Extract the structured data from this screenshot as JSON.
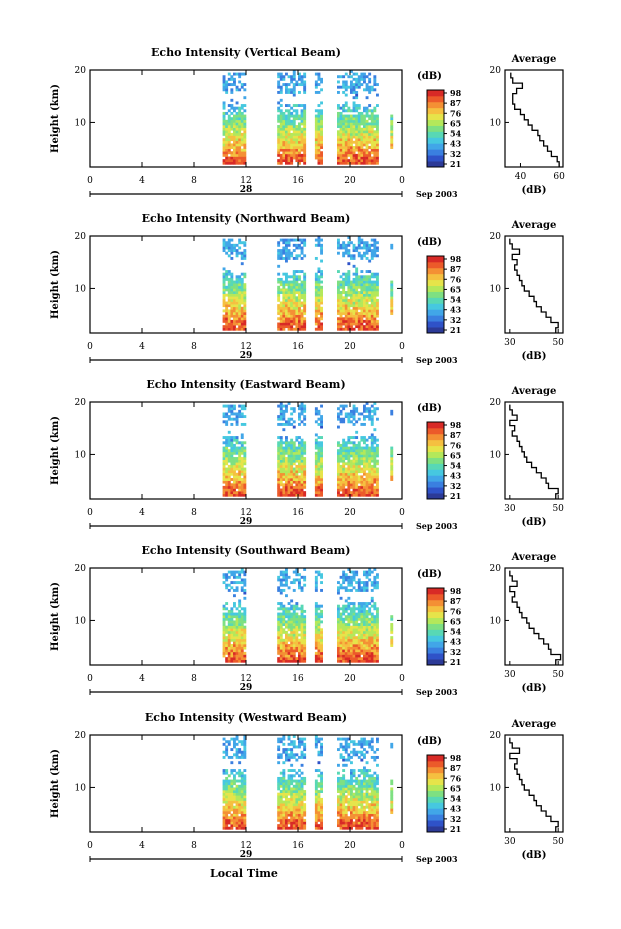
{
  "colors": {
    "scale": [
      "#2c3a97",
      "#2f52c8",
      "#3a7fe0",
      "#41a6e8",
      "#46c8e0",
      "#58d8b5",
      "#7ee082",
      "#b4e85a",
      "#e6e44a",
      "#f5c040",
      "#f49034",
      "#ec5a2a",
      "#d82a26"
    ]
  },
  "colorbar": {
    "unit": "(dB)",
    "labels": [
      "98",
      "87",
      "76",
      "65",
      "54",
      "43",
      "32",
      "21"
    ]
  },
  "footer": {
    "xlabel": "Local Time"
  },
  "chart_data": [
    {
      "type": "heatmap",
      "title": "Echo Intensity (Vertical Beam)",
      "ylabel": "Height (km)",
      "y_ticks": [
        "20",
        "10"
      ],
      "x_ticks": [
        "0",
        "4",
        "8",
        "12",
        "16",
        "20",
        "0"
      ],
      "date_label": "28",
      "date_tail": "Sep 2003",
      "xlim": [
        0,
        24
      ],
      "ylim": [
        1.5,
        20
      ],
      "data_windows": [
        [
          10.2,
          12.0
        ],
        [
          14.4,
          16.6
        ],
        [
          17.3,
          17.9
        ],
        [
          19.0,
          22.2
        ],
        [
          23.1,
          23.3
        ]
      ],
      "profile": {
        "title": "Average",
        "xlabel": "(dB)",
        "x_ticks": [
          "40",
          "60"
        ],
        "y_ticks": [
          "20",
          "10"
        ],
        "xlim": [
          32,
          62
        ],
        "heights": [
          2,
          3,
          4,
          5,
          6,
          7,
          8,
          9,
          10,
          11,
          12,
          13,
          14,
          15,
          16,
          17,
          18,
          19
        ],
        "values": [
          60,
          59,
          56,
          54,
          52,
          50,
          49,
          46,
          44,
          42,
          40,
          37,
          36,
          36,
          38,
          41,
          36,
          35
        ]
      }
    },
    {
      "type": "heatmap",
      "title": "Echo Intensity (Northward Beam)",
      "ylabel": "Height (km)",
      "y_ticks": [
        "20",
        "10"
      ],
      "x_ticks": [
        "0",
        "4",
        "8",
        "12",
        "16",
        "20",
        "0"
      ],
      "date_label": "29",
      "date_tail": "Sep 2003",
      "xlim": [
        0,
        24
      ],
      "ylim": [
        1.5,
        20
      ],
      "data_windows": [
        [
          10.2,
          12.0
        ],
        [
          14.4,
          16.6
        ],
        [
          17.3,
          17.9
        ],
        [
          19.0,
          22.2
        ],
        [
          23.1,
          23.3
        ]
      ],
      "profile": {
        "title": "Average",
        "xlabel": "(dB)",
        "x_ticks": [
          "30",
          "50"
        ],
        "y_ticks": [
          "20",
          "10"
        ],
        "xlim": [
          28,
          52
        ],
        "heights": [
          2,
          3,
          4,
          5,
          6,
          7,
          8,
          9,
          10,
          11,
          12,
          13,
          14,
          15,
          16,
          17,
          18,
          19
        ],
        "values": [
          49,
          50,
          47,
          45,
          43,
          41,
          40,
          38,
          36,
          35,
          34,
          33,
          32,
          33,
          31,
          34,
          31,
          30
        ]
      }
    },
    {
      "type": "heatmap",
      "title": "Echo Intensity (Eastward Beam)",
      "ylabel": "Height (km)",
      "y_ticks": [
        "20",
        "10"
      ],
      "x_ticks": [
        "0",
        "4",
        "8",
        "12",
        "16",
        "20",
        "0"
      ],
      "date_label": "29",
      "date_tail": "Sep 2003",
      "xlim": [
        0,
        24
      ],
      "ylim": [
        1.5,
        20
      ],
      "data_windows": [
        [
          10.2,
          12.0
        ],
        [
          14.4,
          16.6
        ],
        [
          17.3,
          17.9
        ],
        [
          19.0,
          22.2
        ],
        [
          23.1,
          23.3
        ]
      ],
      "profile": {
        "title": "Average",
        "xlabel": "(dB)",
        "x_ticks": [
          "30",
          "50"
        ],
        "y_ticks": [
          "20",
          "10"
        ],
        "xlim": [
          28,
          52
        ],
        "heights": [
          2,
          3,
          4,
          5,
          6,
          7,
          8,
          9,
          10,
          11,
          12,
          13,
          14,
          15,
          16,
          17,
          18,
          19
        ],
        "values": [
          49,
          50,
          46,
          45,
          43,
          41,
          39,
          37,
          36,
          35,
          34,
          33,
          31,
          32,
          30,
          33,
          31,
          30
        ]
      }
    },
    {
      "type": "heatmap",
      "title": "Echo Intensity (Southward Beam)",
      "ylabel": "Height (km)",
      "y_ticks": [
        "20",
        "10"
      ],
      "x_ticks": [
        "0",
        "4",
        "8",
        "12",
        "16",
        "20",
        "0"
      ],
      "date_label": "29",
      "date_tail": "Sep 2003",
      "xlim": [
        0,
        24
      ],
      "ylim": [
        1.5,
        20
      ],
      "data_windows": [
        [
          10.2,
          12.0
        ],
        [
          14.4,
          16.6
        ],
        [
          17.3,
          17.9
        ],
        [
          19.0,
          22.2
        ],
        [
          23.1,
          23.3
        ]
      ],
      "profile": {
        "title": "Average",
        "xlabel": "(dB)",
        "x_ticks": [
          "30",
          "50"
        ],
        "y_ticks": [
          "20",
          "10"
        ],
        "xlim": [
          28,
          52
        ],
        "heights": [
          2,
          3,
          4,
          5,
          6,
          7,
          8,
          9,
          10,
          11,
          12,
          13,
          14,
          15,
          16,
          17,
          18,
          19
        ],
        "values": [
          49,
          51,
          47,
          46,
          44,
          42,
          40,
          38,
          37,
          35,
          34,
          33,
          31,
          32,
          30,
          33,
          31,
          30
        ]
      }
    },
    {
      "type": "heatmap",
      "title": "Echo Intensity (Westward Beam)",
      "ylabel": "Height (km)",
      "y_ticks": [
        "20",
        "10"
      ],
      "x_ticks": [
        "0",
        "4",
        "8",
        "12",
        "16",
        "20",
        "0"
      ],
      "date_label": "29",
      "date_tail": "Sep 2003",
      "xlim": [
        0,
        24
      ],
      "ylim": [
        1.5,
        20
      ],
      "data_windows": [
        [
          10.2,
          12.0
        ],
        [
          14.4,
          16.6
        ],
        [
          17.3,
          17.9
        ],
        [
          19.0,
          22.2
        ],
        [
          23.1,
          23.3
        ]
      ],
      "profile": {
        "title": "Average",
        "xlabel": "(dB)",
        "x_ticks": [
          "30",
          "50"
        ],
        "y_ticks": [
          "20",
          "10"
        ],
        "xlim": [
          28,
          52
        ],
        "heights": [
          2,
          3,
          4,
          5,
          6,
          7,
          8,
          9,
          10,
          11,
          12,
          13,
          14,
          15,
          16,
          17,
          18,
          19
        ],
        "values": [
          49,
          50,
          47,
          45,
          43,
          41,
          40,
          38,
          36,
          35,
          34,
          33,
          32,
          33,
          30,
          34,
          31,
          30
        ]
      }
    }
  ]
}
